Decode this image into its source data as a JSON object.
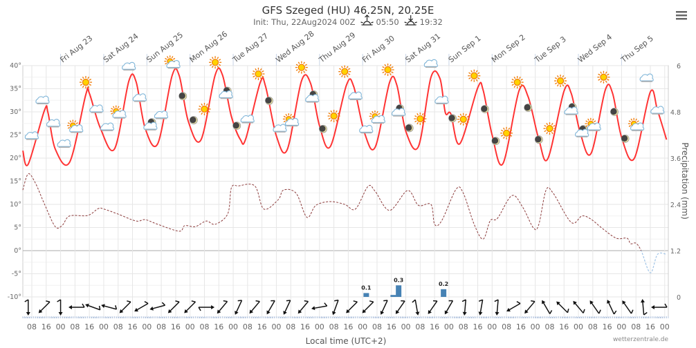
{
  "header": {
    "title": "GFS Szeged (HU) 46.25N, 20.25E",
    "init": "Init: Thu, 22Aug2024 00Z",
    "sunrise": "05:50",
    "sunset": "19:32",
    "menu_icon": "hamburger-menu-icon"
  },
  "credit": "wetterzentrale.de",
  "chart_data": {
    "type": "line",
    "x_range": [
      "2024-08-22 03:00",
      "2024-09-06 02:00"
    ],
    "xlabel": "Local time (UTC+2)",
    "x_tick_labels_hours": [
      "08",
      "16",
      "00"
    ],
    "day_labels": [
      {
        "t": "2024-08-23 00:00",
        "label": "Fri Aug 23"
      },
      {
        "t": "2024-08-24 00:00",
        "label": "Sat Aug 24"
      },
      {
        "t": "2024-08-25 00:00",
        "label": "Sun Aug 25"
      },
      {
        "t": "2024-08-26 00:00",
        "label": "Mon Aug 26"
      },
      {
        "t": "2024-08-27 00:00",
        "label": "Tue Aug 27"
      },
      {
        "t": "2024-08-28 00:00",
        "label": "Wed Aug 28"
      },
      {
        "t": "2024-08-29 00:00",
        "label": "Thu Aug 29"
      },
      {
        "t": "2024-08-30 00:00",
        "label": "Fri Aug 30"
      },
      {
        "t": "2024-08-31 00:00",
        "label": "Sat Aug 31"
      },
      {
        "t": "2024-09-01 00:00",
        "label": "Sun Sep 1"
      },
      {
        "t": "2024-09-02 00:00",
        "label": "Mon Sep 2"
      },
      {
        "t": "2024-09-03 00:00",
        "label": "Tue Sep 3"
      },
      {
        "t": "2024-09-04 00:00",
        "label": "Wed Sep 4"
      },
      {
        "t": "2024-09-05 00:00",
        "label": "Thu Sep 5"
      }
    ],
    "y_left": {
      "ylim": [
        -10,
        40
      ],
      "ticks": [
        40,
        35,
        30,
        25,
        20,
        15,
        10,
        5,
        0,
        -5,
        -10
      ],
      "unit": "°"
    },
    "y_right": {
      "label": "Precipitation (mm)",
      "ylim": [
        0,
        6
      ],
      "ticks": [
        "6",
        "4.8",
        "3.6",
        "2.4",
        "1.2",
        "0"
      ]
    },
    "grid": true,
    "colors": {
      "temperature": "#ff3333",
      "dewpoint": "#8b3a3a",
      "dewpoint_below_zero": "#9fc3e6",
      "precipitation": "#4682b4",
      "wind": "#111111"
    },
    "series": [
      {
        "key": "temperature",
        "style": "solid",
        "points": [
          [
            "2024-08-22 03:00",
            21.6
          ],
          [
            "2024-08-22 06:00",
            18.7
          ],
          [
            "2024-08-22 15:00",
            30.3
          ],
          [
            "2024-08-22 17:00",
            29.8
          ],
          [
            "2024-08-22 21:00",
            22
          ],
          [
            "2024-08-23 05:00",
            19.1
          ],
          [
            "2024-08-23 14:00",
            33.7
          ],
          [
            "2024-08-23 16:00",
            34
          ],
          [
            "2024-08-23 22:00",
            26.6
          ],
          [
            "2024-08-24 06:00",
            22
          ],
          [
            "2024-08-24 14:00",
            36.7
          ],
          [
            "2024-08-24 18:00",
            36.5
          ],
          [
            "2024-08-24 23:00",
            26.5
          ],
          [
            "2024-08-25 06:00",
            23.1
          ],
          [
            "2024-08-25 14:00",
            37.8
          ],
          [
            "2024-08-25 18:00",
            37.8
          ],
          [
            "2024-08-25 23:00",
            28
          ],
          [
            "2024-08-26 06:00",
            23.9
          ],
          [
            "2024-08-26 14:00",
            38
          ],
          [
            "2024-08-26 18:00",
            38
          ],
          [
            "2024-08-26 23:00",
            29
          ],
          [
            "2024-08-27 04:00",
            24
          ],
          [
            "2024-08-27 07:00",
            24.2
          ],
          [
            "2024-08-27 15:00",
            36.3
          ],
          [
            "2024-08-27 18:00",
            35.5
          ],
          [
            "2024-08-28 00:00",
            24.8
          ],
          [
            "2024-08-28 06:00",
            21.8
          ],
          [
            "2024-08-28 14:00",
            36.7
          ],
          [
            "2024-08-28 19:00",
            36.2
          ],
          [
            "2024-08-29 00:00",
            27
          ],
          [
            "2024-08-29 06:00",
            22.5
          ],
          [
            "2024-08-29 15:00",
            35.8
          ],
          [
            "2024-08-29 19:00",
            35.5
          ],
          [
            "2024-08-30 01:00",
            25.5
          ],
          [
            "2024-08-30 07:00",
            22.4
          ],
          [
            "2024-08-30 15:00",
            36.4
          ],
          [
            "2024-08-30 19:00",
            35.8
          ],
          [
            "2024-08-31 00:00",
            25.8
          ],
          [
            "2024-08-31 07:00",
            22.5
          ],
          [
            "2024-08-31 14:00",
            37.5
          ],
          [
            "2024-08-31 19:00",
            37.2
          ],
          [
            "2024-08-31 22:00",
            29.8
          ],
          [
            "2024-09-01 01:00",
            29.6
          ],
          [
            "2024-09-01 06:00",
            23.1
          ],
          [
            "2024-09-01 16:00",
            35.2
          ],
          [
            "2024-09-01 19:00",
            34.7
          ],
          [
            "2024-09-02 00:00",
            25
          ],
          [
            "2024-09-02 06:00",
            18.8
          ],
          [
            "2024-09-02 15:00",
            34.6
          ],
          [
            "2024-09-02 20:00",
            33.3
          ],
          [
            "2024-09-03 02:00",
            24
          ],
          [
            "2024-09-03 07:00",
            19.9
          ],
          [
            "2024-09-03 16:00",
            34.5
          ],
          [
            "2024-09-03 20:00",
            34
          ],
          [
            "2024-09-04 01:00",
            25.5
          ],
          [
            "2024-09-04 07:00",
            21
          ],
          [
            "2024-09-04 15:00",
            34.8
          ],
          [
            "2024-09-04 19:00",
            34
          ],
          [
            "2024-09-05 00:00",
            24.5
          ],
          [
            "2024-09-05 07:00",
            19.9
          ],
          [
            "2024-09-05 16:00",
            34.3
          ],
          [
            "2024-09-05 20:00",
            30.3
          ],
          [
            "2024-09-06 01:00",
            24
          ]
        ]
      },
      {
        "key": "dewpoint",
        "style": "dashed",
        "points": [
          [
            "2024-08-22 03:00",
            13.1
          ],
          [
            "2024-08-22 06:00",
            16.6
          ],
          [
            "2024-08-22 10:00",
            14.6
          ],
          [
            "2024-08-22 15:00",
            10.1
          ],
          [
            "2024-08-22 21:00",
            5.2
          ],
          [
            "2024-08-23 01:00",
            5.5
          ],
          [
            "2024-08-23 05:00",
            7.5
          ],
          [
            "2024-08-23 15:00",
            7.6
          ],
          [
            "2024-08-23 21:00",
            9.1
          ],
          [
            "2024-08-24 00:00",
            9
          ],
          [
            "2024-08-24 08:00",
            7.9
          ],
          [
            "2024-08-24 18:00",
            6.4
          ],
          [
            "2024-08-24 23:00",
            6.7
          ],
          [
            "2024-08-25 06:00",
            5.7
          ],
          [
            "2024-08-25 18:00",
            4.2
          ],
          [
            "2024-08-25 21:00",
            5.4
          ],
          [
            "2024-08-26 03:00",
            5.2
          ],
          [
            "2024-08-26 09:00",
            6.4
          ],
          [
            "2024-08-26 14:00",
            5.7
          ],
          [
            "2024-08-26 21:00",
            8
          ],
          [
            "2024-08-26 23:00",
            13.6
          ],
          [
            "2024-08-27 03:00",
            14
          ],
          [
            "2024-08-27 12:00",
            14
          ],
          [
            "2024-08-27 17:00",
            9
          ],
          [
            "2024-08-28 01:00",
            11
          ],
          [
            "2024-08-28 04:00",
            13.1
          ],
          [
            "2024-08-28 11:00",
            12.4
          ],
          [
            "2024-08-28 17:00",
            7.2
          ],
          [
            "2024-08-28 22:00",
            9.8
          ],
          [
            "2024-08-29 06:00",
            10.6
          ],
          [
            "2024-08-29 14:00",
            10
          ],
          [
            "2024-08-29 20:00",
            9
          ],
          [
            "2024-08-30 03:00",
            13.9
          ],
          [
            "2024-08-30 07:00",
            12.8
          ],
          [
            "2024-08-30 15:00",
            8.7
          ],
          [
            "2024-08-31 01:00",
            13
          ],
          [
            "2024-08-31 07:00",
            9.8
          ],
          [
            "2024-08-31 14:00",
            10
          ],
          [
            "2024-08-31 16:00",
            5.7
          ],
          [
            "2024-08-31 20:00",
            6.5
          ],
          [
            "2024-09-01 04:00",
            13.3
          ],
          [
            "2024-09-01 08:00",
            12.4
          ],
          [
            "2024-09-01 14:00",
            5.7
          ],
          [
            "2024-09-01 19:00",
            2.5
          ],
          [
            "2024-09-01 23:00",
            6.5
          ],
          [
            "2024-09-02 03:00",
            7
          ],
          [
            "2024-09-02 11:00",
            11.9
          ],
          [
            "2024-09-02 17:00",
            9.4
          ],
          [
            "2024-09-02 23:00",
            4.9
          ],
          [
            "2024-09-03 02:00",
            5.7
          ],
          [
            "2024-09-03 06:00",
            13.1
          ],
          [
            "2024-09-03 10:00",
            12.4
          ],
          [
            "2024-09-03 20:00",
            6.1
          ],
          [
            "2024-09-04 02:00",
            7.5
          ],
          [
            "2024-09-04 07:00",
            6.8
          ],
          [
            "2024-09-04 13:00",
            4.9
          ],
          [
            "2024-09-04 21:00",
            2.7
          ],
          [
            "2024-09-05 03:00",
            2.7
          ],
          [
            "2024-09-05 05:00",
            1.5
          ],
          [
            "2024-09-05 08:00",
            1.6
          ],
          [
            "2024-09-05 11:00",
            -0.1
          ],
          [
            "2024-09-05 16:00",
            -4.8
          ],
          [
            "2024-09-05 20:00",
            -0.8
          ],
          [
            "2024-09-06 01:00",
            -0.8
          ]
        ]
      }
    ],
    "precipitation": [
      {
        "t": "2024-08-30 02:00",
        "value": 0.1,
        "label": "0.1"
      },
      {
        "t": "2024-08-30 17:00",
        "value": 0.05,
        "label": ""
      },
      {
        "t": "2024-08-30 20:00",
        "value": 0.3,
        "label": "0.3"
      },
      {
        "t": "2024-08-31 21:00",
        "value": 0.2,
        "label": "0.2"
      }
    ],
    "weather_icons": {
      "start": "2024-08-22 08:00",
      "step_hours": 6,
      "items": [
        [
          "cloud",
          24.8
        ],
        [
          "cloud",
          32.5
        ],
        [
          "cloud",
          27.5
        ],
        [
          "cloud",
          23.1
        ],
        [
          "sun-cloud",
          26.6
        ],
        [
          "sun",
          36.4
        ],
        [
          "cloud",
          30.6
        ],
        [
          "cloud",
          26.7
        ],
        [
          "sun-cloud",
          29.7
        ],
        [
          "cloud",
          39.8
        ],
        [
          "cloud",
          33
        ],
        [
          "moon-cloud",
          27
        ],
        [
          "cloud",
          29.3
        ],
        [
          "sun-cloud",
          40.5
        ],
        [
          "moon",
          33.4
        ],
        [
          "moon",
          28.2
        ],
        [
          "sun",
          30.6
        ],
        [
          "sun",
          40.7
        ],
        [
          "moon-cloud",
          33.8
        ],
        [
          "moon",
          27
        ],
        [
          "cloud",
          28.4
        ],
        [
          "sun",
          38.2
        ],
        [
          "moon",
          32.4
        ],
        [
          "cloud",
          26.4
        ],
        [
          "sun-cloud",
          28
        ],
        [
          "sun",
          39.6
        ],
        [
          "moon-cloud",
          33
        ],
        [
          "moon",
          26.3
        ],
        [
          "sun",
          29.1
        ],
        [
          "sun",
          38.7
        ],
        [
          "cloud",
          33.4
        ],
        [
          "cloud",
          26.2
        ],
        [
          "sun-cloud",
          28.6
        ],
        [
          "sun",
          39.1
        ],
        [
          "moon-cloud",
          30
        ],
        [
          "moon",
          26.5
        ],
        [
          "sun",
          28.5
        ],
        [
          "cloud",
          40.4
        ],
        [
          "cloud",
          32.5
        ],
        [
          "moon",
          28.6
        ],
        [
          "sun",
          28.4
        ],
        [
          "sun",
          37.8
        ],
        [
          "moon",
          30.6
        ],
        [
          "moon",
          23.7
        ],
        [
          "sun",
          25.4
        ],
        [
          "sun",
          36.4
        ],
        [
          "moon",
          30.9
        ],
        [
          "moon",
          24
        ],
        [
          "sun",
          26.4
        ],
        [
          "sun",
          36.7
        ],
        [
          "moon-cloud",
          30.3
        ],
        [
          "moon-cloud",
          25.5
        ],
        [
          "sun-cloud",
          27
        ],
        [
          "sun",
          37.5
        ],
        [
          "moon",
          30
        ],
        [
          "moon",
          24.2
        ],
        [
          "sun-cloud",
          27
        ],
        [
          "cloud",
          37.3
        ],
        [
          "cloud",
          30.3
        ]
      ]
    },
    "wind_barbs": {
      "start": "2024-08-22 06:00",
      "step_hours": 9,
      "direction_to_deg": [
        180,
        225,
        180,
        270,
        290,
        285,
        225,
        240,
        255,
        225,
        225,
        90,
        220,
        205,
        220,
        210,
        205,
        220,
        260,
        200,
        225,
        225,
        205,
        215,
        170,
        215,
        210,
        185,
        190,
        185,
        240,
        220,
        330,
        315,
        320,
        325,
        335,
        325,
        355,
        270
      ]
    }
  }
}
